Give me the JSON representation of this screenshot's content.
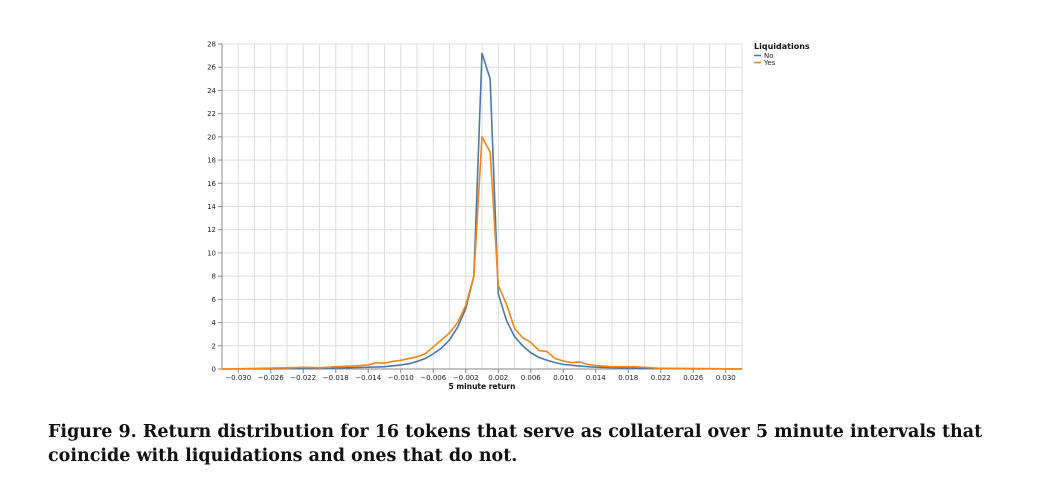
{
  "caption": "Figure 9. Return distribution for 16 tokens that serve as collateral over 5 minute intervals that coincide with liquidations and ones that do not.",
  "chart_data": {
    "type": "line",
    "xlabel": "5 minute return",
    "ylabel": "",
    "xlim": [
      -0.032,
      0.032
    ],
    "ylim": [
      0,
      28
    ],
    "grid": true,
    "x_ticks": [
      "-0.030",
      "-0.026",
      "-0.022",
      "-0.018",
      "-0.014",
      "-0.010",
      "-0.006",
      "-0.002",
      "0.002",
      "0.006",
      "0.010",
      "0.014",
      "0.018",
      "0.022",
      "0.026",
      "0.030"
    ],
    "y_ticks": [
      "0",
      "2",
      "4",
      "6",
      "8",
      "10",
      "12",
      "14",
      "16",
      "18",
      "20",
      "22",
      "24",
      "26",
      "28"
    ],
    "legend": {
      "title": "Liquidations",
      "position": "top-right"
    },
    "series": [
      {
        "name": "No",
        "color": "#4c78a8",
        "points": [
          [
            -0.032,
            0.0
          ],
          [
            -0.026,
            0.02
          ],
          [
            -0.022,
            0.05
          ],
          [
            -0.018,
            0.08
          ],
          [
            -0.014,
            0.15
          ],
          [
            -0.012,
            0.2
          ],
          [
            -0.01,
            0.35
          ],
          [
            -0.009,
            0.45
          ],
          [
            -0.008,
            0.65
          ],
          [
            -0.007,
            0.9
          ],
          [
            -0.006,
            1.3
          ],
          [
            -0.005,
            1.8
          ],
          [
            -0.004,
            2.5
          ],
          [
            -0.003,
            3.6
          ],
          [
            -0.002,
            5.2
          ],
          [
            -0.001,
            8.0
          ],
          [
            0.0,
            27.2
          ],
          [
            0.001,
            25.0
          ],
          [
            0.002,
            6.5
          ],
          [
            0.003,
            4.2
          ],
          [
            0.004,
            2.8
          ],
          [
            0.005,
            2.0
          ],
          [
            0.006,
            1.4
          ],
          [
            0.007,
            1.0
          ],
          [
            0.008,
            0.75
          ],
          [
            0.009,
            0.55
          ],
          [
            0.01,
            0.4
          ],
          [
            0.012,
            0.25
          ],
          [
            0.014,
            0.15
          ],
          [
            0.018,
            0.08
          ],
          [
            0.022,
            0.05
          ],
          [
            0.026,
            0.02
          ],
          [
            0.032,
            0.0
          ]
        ]
      },
      {
        "name": "Yes",
        "color": "#f58518",
        "points": [
          [
            -0.032,
            0.0
          ],
          [
            -0.028,
            0.05
          ],
          [
            -0.024,
            0.1
          ],
          [
            -0.022,
            0.15
          ],
          [
            -0.02,
            0.1
          ],
          [
            -0.018,
            0.2
          ],
          [
            -0.016,
            0.25
          ],
          [
            -0.015,
            0.3
          ],
          [
            -0.014,
            0.35
          ],
          [
            -0.013,
            0.55
          ],
          [
            -0.012,
            0.5
          ],
          [
            -0.011,
            0.65
          ],
          [
            -0.01,
            0.75
          ],
          [
            -0.009,
            0.9
          ],
          [
            -0.008,
            1.05
          ],
          [
            -0.007,
            1.3
          ],
          [
            -0.006,
            1.9
          ],
          [
            -0.005,
            2.5
          ],
          [
            -0.004,
            3.1
          ],
          [
            -0.003,
            4.0
          ],
          [
            -0.002,
            5.5
          ],
          [
            -0.001,
            8.0
          ],
          [
            0.0,
            20.0
          ],
          [
            0.001,
            18.7
          ],
          [
            0.002,
            7.2
          ],
          [
            0.003,
            5.6
          ],
          [
            0.004,
            3.5
          ],
          [
            0.005,
            2.7
          ],
          [
            0.006,
            2.3
          ],
          [
            0.007,
            1.6
          ],
          [
            0.008,
            1.5
          ],
          [
            0.009,
            0.9
          ],
          [
            0.01,
            0.7
          ],
          [
            0.011,
            0.55
          ],
          [
            0.012,
            0.6
          ],
          [
            0.013,
            0.4
          ],
          [
            0.014,
            0.3
          ],
          [
            0.016,
            0.2
          ],
          [
            0.018,
            0.2
          ],
          [
            0.02,
            0.15
          ],
          [
            0.022,
            0.05
          ],
          [
            0.026,
            0.05
          ],
          [
            0.03,
            0.02
          ],
          [
            0.032,
            0.0
          ]
        ]
      }
    ]
  }
}
